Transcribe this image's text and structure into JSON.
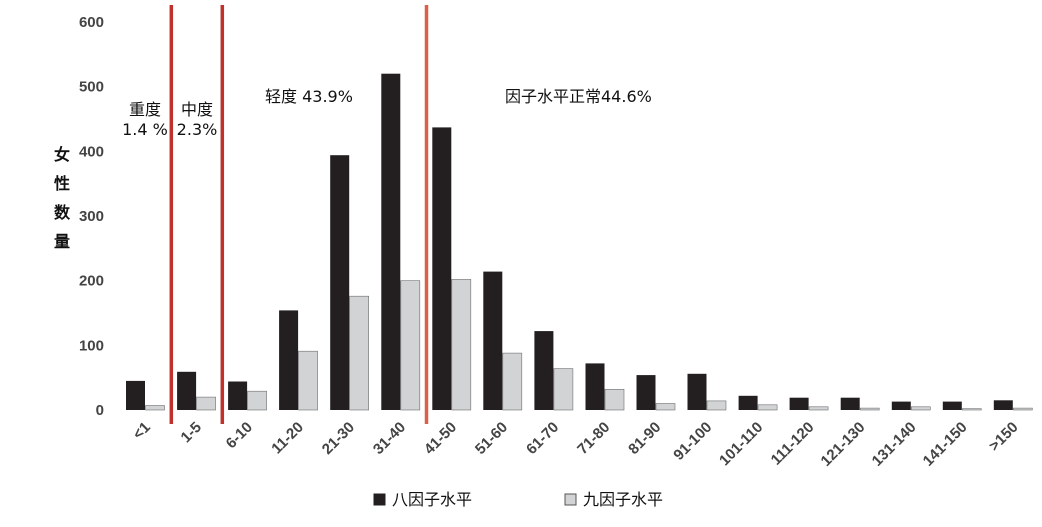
{
  "chart_data": {
    "type": "bar",
    "ylabel": "女性数量",
    "ylim": [
      0,
      600
    ],
    "yticks": [
      0,
      100,
      200,
      300,
      400,
      500,
      600
    ],
    "grid": false,
    "legend_position": "bottom",
    "categories": [
      "<1",
      "1-5",
      "6-10",
      "11-20",
      "21-30",
      "31-40",
      "41-50",
      "51-60",
      "61-70",
      "71-80",
      "81-90",
      "91-100",
      "101-110",
      "111-120",
      "121-130",
      "131-140",
      "141-150",
      ">150"
    ],
    "series": [
      {
        "name": "八因子水平",
        "color": "#231f20",
        "values": [
          45,
          59,
          44,
          154,
          394,
          520,
          437,
          214,
          122,
          72,
          54,
          56,
          22,
          19,
          19,
          13,
          13,
          15
        ]
      },
      {
        "name": "九因子水平",
        "color": "#d1d3d4",
        "values": [
          7,
          20,
          29,
          91,
          176,
          200,
          202,
          88,
          64,
          32,
          10,
          14,
          8,
          5,
          3,
          5,
          2,
          3
        ]
      }
    ],
    "dividers": [
      {
        "after_index": 0,
        "color": "#c0312b"
      },
      {
        "after_index": 1,
        "color": "#c0312b"
      },
      {
        "after_index": 5,
        "color": "#d9614a"
      }
    ],
    "annotations": [
      {
        "lines": [
          "重度",
          "1.4 %"
        ]
      },
      {
        "lines": [
          "中度",
          "2.3%"
        ]
      },
      {
        "lines": [
          "轻度 43.9%"
        ]
      },
      {
        "lines": [
          "因子水平正常44.6%"
        ]
      }
    ]
  }
}
